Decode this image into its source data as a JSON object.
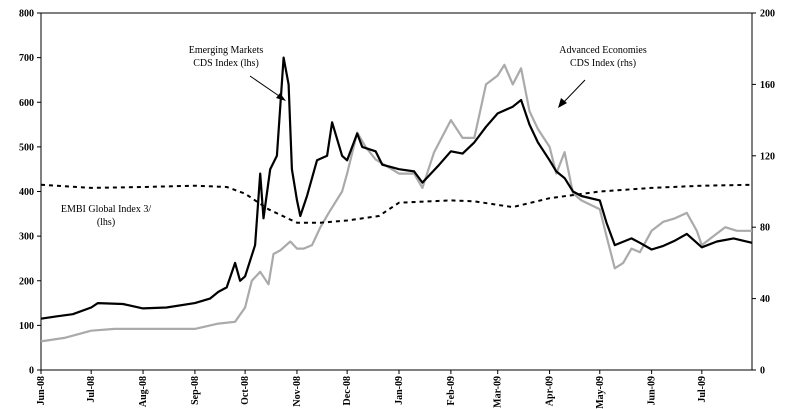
{
  "chart_data": {
    "type": "line",
    "title": "",
    "xlabel": "",
    "ylabel_left": "",
    "ylabel_right": "",
    "x_range": [
      "2008-06-01",
      "2009-07-31"
    ],
    "ylim_left": [
      0,
      800
    ],
    "ylim_right": [
      0,
      200
    ],
    "left_ticks": [
      "0",
      "100",
      "200",
      "300",
      "400",
      "500",
      "600",
      "700",
      "800"
    ],
    "right_ticks": [
      "0",
      "40",
      "80",
      "120",
      "160",
      "200"
    ],
    "x_ticks": [
      {
        "label": "Jun-08",
        "date": "2008-06-01"
      },
      {
        "label": "Jul-08",
        "date": "2008-07-01"
      },
      {
        "label": "Aug-08",
        "date": "2008-08-01"
      },
      {
        "label": "Sep-08",
        "date": "2008-09-01"
      },
      {
        "label": "Oct-08",
        "date": "2008-10-01"
      },
      {
        "label": "Nov-08",
        "date": "2008-11-01"
      },
      {
        "label": "Dec-08",
        "date": "2008-12-01"
      },
      {
        "label": "Jan-09",
        "date": "2009-01-01"
      },
      {
        "label": "Feb-09",
        "date": "2009-02-01"
      },
      {
        "label": "Mar-09",
        "date": "2009-03-01"
      },
      {
        "label": "Apr-09",
        "date": "2009-04-01"
      },
      {
        "label": "May-09",
        "date": "2009-05-01"
      },
      {
        "label": "Jun-09",
        "date": "2009-06-01"
      },
      {
        "label": "Jul-09",
        "date": "2009-07-01"
      }
    ],
    "grid": false,
    "series": [
      {
        "name": "Emerging Markets CDS Index (lhs)",
        "axis": "left",
        "color": "#000000",
        "style": "solid",
        "points": [
          [
            "2008-06-01",
            115
          ],
          [
            "2008-06-10",
            120
          ],
          [
            "2008-06-20",
            125
          ],
          [
            "2008-07-01",
            140
          ],
          [
            "2008-07-05",
            150
          ],
          [
            "2008-07-20",
            148
          ],
          [
            "2008-08-01",
            138
          ],
          [
            "2008-08-15",
            140
          ],
          [
            "2008-09-01",
            150
          ],
          [
            "2008-09-10",
            160
          ],
          [
            "2008-09-15",
            175
          ],
          [
            "2008-09-20",
            185
          ],
          [
            "2008-09-25",
            240
          ],
          [
            "2008-09-28",
            200
          ],
          [
            "2008-10-01",
            210
          ],
          [
            "2008-10-07",
            280
          ],
          [
            "2008-10-10",
            440
          ],
          [
            "2008-10-12",
            340
          ],
          [
            "2008-10-16",
            450
          ],
          [
            "2008-10-20",
            480
          ],
          [
            "2008-10-24",
            700
          ],
          [
            "2008-10-27",
            640
          ],
          [
            "2008-10-29",
            450
          ],
          [
            "2008-11-01",
            380
          ],
          [
            "2008-11-03",
            345
          ],
          [
            "2008-11-07",
            390
          ],
          [
            "2008-11-13",
            470
          ],
          [
            "2008-11-19",
            480
          ],
          [
            "2008-11-22",
            555
          ],
          [
            "2008-11-28",
            480
          ],
          [
            "2008-12-01",
            470
          ],
          [
            "2008-12-07",
            530
          ],
          [
            "2008-12-10",
            500
          ],
          [
            "2008-12-18",
            490
          ],
          [
            "2008-12-22",
            460
          ],
          [
            "2009-01-01",
            450
          ],
          [
            "2009-01-10",
            445
          ],
          [
            "2009-01-15",
            420
          ],
          [
            "2009-01-25",
            460
          ],
          [
            "2009-02-01",
            490
          ],
          [
            "2009-02-08",
            485
          ],
          [
            "2009-02-15",
            510
          ],
          [
            "2009-02-22",
            545
          ],
          [
            "2009-03-01",
            575
          ],
          [
            "2009-03-10",
            590
          ],
          [
            "2009-03-15",
            605
          ],
          [
            "2009-03-20",
            550
          ],
          [
            "2009-03-25",
            510
          ],
          [
            "2009-04-01",
            470
          ],
          [
            "2009-04-05",
            445
          ],
          [
            "2009-04-10",
            430
          ],
          [
            "2009-04-15",
            400
          ],
          [
            "2009-04-20",
            390
          ],
          [
            "2009-05-01",
            380
          ],
          [
            "2009-05-05",
            330
          ],
          [
            "2009-05-10",
            280
          ],
          [
            "2009-05-20",
            295
          ],
          [
            "2009-05-25",
            285
          ],
          [
            "2009-06-01",
            270
          ],
          [
            "2009-06-08",
            278
          ],
          [
            "2009-06-15",
            290
          ],
          [
            "2009-06-22",
            305
          ],
          [
            "2009-06-28",
            285
          ],
          [
            "2009-07-01",
            275
          ],
          [
            "2009-07-10",
            288
          ],
          [
            "2009-07-20",
            295
          ],
          [
            "2009-07-31",
            285
          ]
        ]
      },
      {
        "name": "Advanced Economies CDS Index (rhs)",
        "axis": "right",
        "color": "#aaaaaa",
        "style": "solid",
        "points": [
          [
            "2008-06-01",
            16
          ],
          [
            "2008-06-15",
            18
          ],
          [
            "2008-07-01",
            22
          ],
          [
            "2008-07-15",
            23
          ],
          [
            "2008-08-01",
            23
          ],
          [
            "2008-09-01",
            23
          ],
          [
            "2008-09-15",
            26
          ],
          [
            "2008-09-25",
            27
          ],
          [
            "2008-10-01",
            35
          ],
          [
            "2008-10-05",
            50
          ],
          [
            "2008-10-10",
            55
          ],
          [
            "2008-10-15",
            48
          ],
          [
            "2008-10-18",
            65
          ],
          [
            "2008-10-22",
            67
          ],
          [
            "2008-10-28",
            72
          ],
          [
            "2008-11-01",
            68
          ],
          [
            "2008-11-05",
            68
          ],
          [
            "2008-11-10",
            70
          ],
          [
            "2008-11-15",
            80
          ],
          [
            "2008-11-20",
            88
          ],
          [
            "2008-11-28",
            100
          ],
          [
            "2008-12-01",
            110
          ],
          [
            "2008-12-07",
            133
          ],
          [
            "2008-12-12",
            125
          ],
          [
            "2008-12-18",
            118
          ],
          [
            "2009-01-01",
            110
          ],
          [
            "2009-01-10",
            110
          ],
          [
            "2009-01-15",
            102
          ],
          [
            "2009-01-22",
            122
          ],
          [
            "2009-02-01",
            140
          ],
          [
            "2009-02-08",
            130
          ],
          [
            "2009-02-15",
            130
          ],
          [
            "2009-02-22",
            160
          ],
          [
            "2009-03-01",
            165
          ],
          [
            "2009-03-05",
            171
          ],
          [
            "2009-03-10",
            160
          ],
          [
            "2009-03-15",
            169
          ],
          [
            "2009-03-20",
            145
          ],
          [
            "2009-03-25",
            135
          ],
          [
            "2009-04-01",
            125
          ],
          [
            "2009-04-05",
            110
          ],
          [
            "2009-04-10",
            122
          ],
          [
            "2009-04-15",
            99
          ],
          [
            "2009-04-20",
            95
          ],
          [
            "2009-05-01",
            90
          ],
          [
            "2009-05-05",
            75
          ],
          [
            "2009-05-10",
            57
          ],
          [
            "2009-05-15",
            60
          ],
          [
            "2009-05-20",
            68
          ],
          [
            "2009-05-25",
            66
          ],
          [
            "2009-06-01",
            78
          ],
          [
            "2009-06-08",
            83
          ],
          [
            "2009-06-15",
            85
          ],
          [
            "2009-06-22",
            88
          ],
          [
            "2009-06-28",
            78
          ],
          [
            "2009-07-01",
            70
          ],
          [
            "2009-07-08",
            75
          ],
          [
            "2009-07-15",
            80
          ],
          [
            "2009-07-22",
            78
          ],
          [
            "2009-07-31",
            78
          ]
        ]
      },
      {
        "name": "EMBI Global Index 3/ (lhs)",
        "axis": "left",
        "color": "#000000",
        "style": "dashed",
        "points": [
          [
            "2008-06-01",
            415
          ],
          [
            "2008-07-01",
            408
          ],
          [
            "2008-08-01",
            410
          ],
          [
            "2008-09-01",
            413
          ],
          [
            "2008-09-20",
            410
          ],
          [
            "2008-10-01",
            395
          ],
          [
            "2008-10-15",
            360
          ],
          [
            "2008-11-01",
            330
          ],
          [
            "2008-11-15",
            330
          ],
          [
            "2008-12-01",
            335
          ],
          [
            "2008-12-20",
            345
          ],
          [
            "2009-01-01",
            375
          ],
          [
            "2009-02-01",
            380
          ],
          [
            "2009-02-15",
            378
          ],
          [
            "2009-03-01",
            370
          ],
          [
            "2009-03-10",
            365
          ],
          [
            "2009-04-01",
            385
          ],
          [
            "2009-05-01",
            400
          ],
          [
            "2009-06-01",
            408
          ],
          [
            "2009-07-01",
            413
          ],
          [
            "2009-07-31",
            415
          ]
        ]
      }
    ],
    "annotations": [
      {
        "name": "em-cds-label",
        "lines": [
          "Emerging Markets",
          "CDS Index (lhs)"
        ]
      },
      {
        "name": "ae-cds-label",
        "lines": [
          "Advanced Economies",
          "CDS Index (rhs)"
        ]
      },
      {
        "name": "embi-label",
        "lines": [
          "EMBI Global Index 3/",
          "(lhs)"
        ]
      }
    ]
  }
}
